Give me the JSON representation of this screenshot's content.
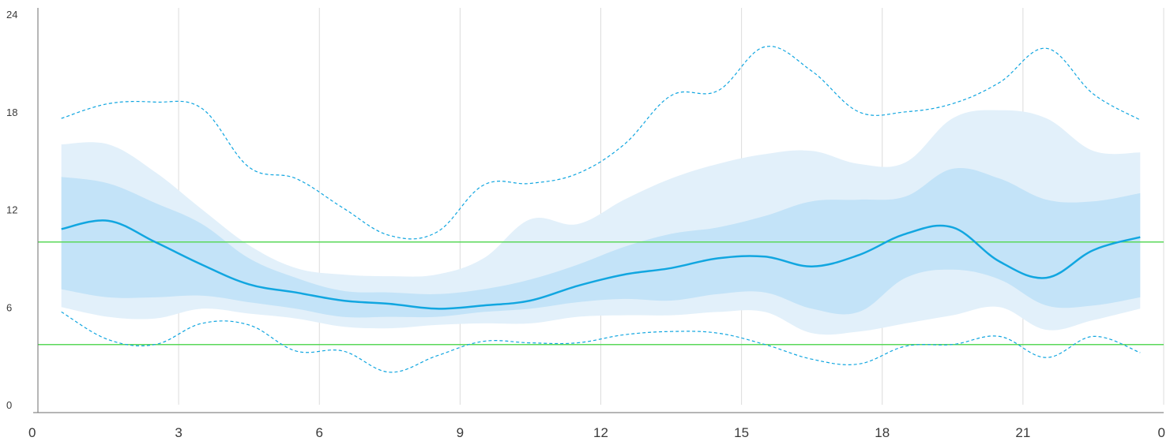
{
  "chart_data": {
    "type": "area",
    "x_tick_labels": [
      "0",
      "3",
      "6",
      "9",
      "12",
      "15",
      "18",
      "21",
      "0"
    ],
    "y_tick_labels": [
      "0",
      "6",
      "12",
      "18",
      "24"
    ],
    "xlim": [
      0,
      24
    ],
    "ylim": [
      0,
      24
    ],
    "grid": "vertical",
    "x": [
      0.5,
      1.5,
      2.5,
      3.5,
      4.5,
      5.5,
      6.5,
      7.5,
      8.5,
      9.5,
      10.5,
      11.5,
      12.5,
      13.5,
      14.5,
      15.5,
      16.5,
      17.5,
      18.5,
      19.5,
      20.5,
      21.5,
      22.5,
      23.5
    ],
    "median": [
      10.8,
      11.3,
      10.0,
      8.6,
      7.4,
      6.9,
      6.4,
      6.2,
      5.9,
      6.1,
      6.4,
      7.3,
      8.0,
      8.4,
      9.0,
      9.1,
      8.5,
      9.2,
      10.5,
      10.9,
      8.8,
      7.8,
      9.5,
      10.3
    ],
    "p25": [
      7.1,
      6.6,
      6.6,
      6.7,
      6.3,
      5.9,
      5.4,
      5.4,
      5.4,
      5.7,
      5.9,
      6.3,
      6.5,
      6.4,
      6.8,
      6.9,
      5.9,
      5.7,
      7.8,
      8.3,
      7.7,
      6.1,
      6.1,
      6.6
    ],
    "p75": [
      14.0,
      13.6,
      12.4,
      11.1,
      9.0,
      7.8,
      7.0,
      6.9,
      6.8,
      7.1,
      7.7,
      8.6,
      9.7,
      10.5,
      10.9,
      11.6,
      12.5,
      12.6,
      12.8,
      14.5,
      13.9,
      12.6,
      12.5,
      13.0
    ],
    "p10": [
      6.0,
      5.4,
      5.3,
      5.9,
      5.6,
      5.3,
      4.8,
      4.7,
      4.9,
      5.0,
      5.0,
      5.4,
      5.5,
      5.5,
      5.7,
      5.7,
      4.4,
      4.5,
      5.0,
      5.5,
      6.0,
      4.6,
      5.2,
      5.9
    ],
    "p90": [
      16.0,
      16.0,
      14.3,
      12.0,
      9.8,
      8.4,
      8.0,
      7.9,
      8.0,
      9.0,
      11.4,
      11.1,
      12.6,
      13.9,
      14.8,
      15.4,
      15.6,
      14.8,
      14.9,
      17.6,
      18.1,
      17.6,
      15.6,
      15.5
    ],
    "min": [
      5.7,
      4.0,
      3.7,
      5.0,
      4.9,
      3.3,
      3.3,
      2.0,
      3.0,
      3.9,
      3.8,
      3.8,
      4.3,
      4.5,
      4.4,
      3.7,
      2.8,
      2.5,
      3.6,
      3.7,
      4.2,
      2.9,
      4.2,
      3.2
    ],
    "max": [
      17.6,
      18.5,
      18.6,
      18.2,
      14.6,
      13.9,
      12.1,
      10.4,
      10.6,
      13.5,
      13.6,
      14.2,
      16.0,
      19.0,
      19.3,
      22.0,
      20.5,
      18.0,
      18.0,
      18.5,
      19.8,
      21.9,
      19.1,
      17.5
    ],
    "reference_lines": [
      10.0,
      3.7
    ],
    "colors": {
      "outer_band": "#e2f0fa",
      "inner_band": "#bde0f7",
      "median_line": "#11a6e0",
      "minmax_line": "#11a6e0",
      "reference_line": "#5ad85a",
      "grid": "#dcdcdc",
      "axis": "#6e6e6e"
    }
  }
}
